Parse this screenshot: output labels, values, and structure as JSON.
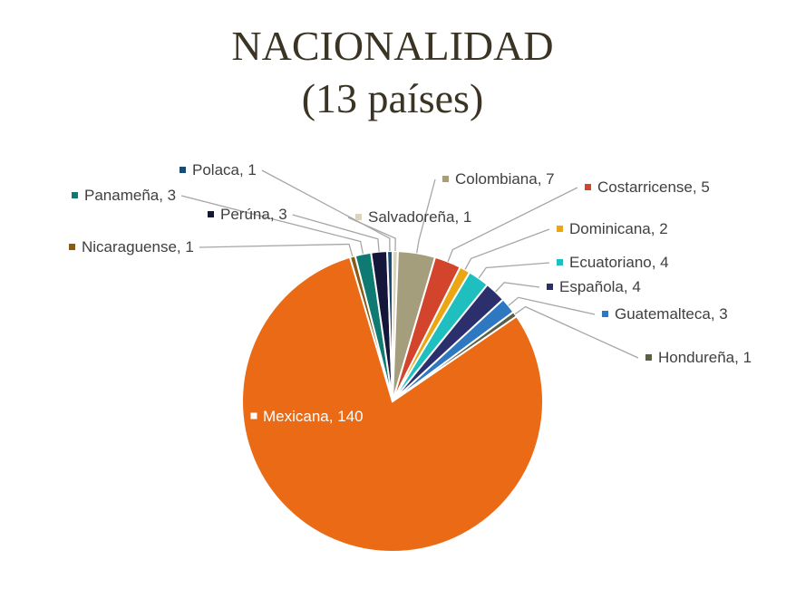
{
  "chart_data": {
    "type": "pie",
    "title_line1": "NACIONALIDAD",
    "title_line2": "(13 países)",
    "slices": [
      {
        "name": "Salvadoreña",
        "value": 1,
        "label": "Salvadoreña, 1",
        "color": "#d9d4bf"
      },
      {
        "name": "Colombiana",
        "value": 7,
        "label": "Colombiana, 7",
        "color": "#a59e7d"
      },
      {
        "name": "Costarricense",
        "value": 5,
        "label": "Costarricense, 5",
        "color": "#d2442b"
      },
      {
        "name": "Dominicana",
        "value": 2,
        "label": "Dominicana, 2",
        "color": "#eaa614"
      },
      {
        "name": "Ecuatoriano",
        "value": 4,
        "label": "Ecuatoriano, 4",
        "color": "#1fbfbf"
      },
      {
        "name": "Española",
        "value": 4,
        "label": "Española, 4",
        "color": "#2b2f6b"
      },
      {
        "name": "Guatemalteca",
        "value": 3,
        "label": "Guatemalteca, 3",
        "color": "#2e78c2"
      },
      {
        "name": "Hondureña",
        "value": 1,
        "label": "Hondureña, 1",
        "color": "#5b5f45"
      },
      {
        "name": "Mexicana",
        "value": 140,
        "label": "Mexicana, 140",
        "color": "#ea6a15"
      },
      {
        "name": "Nicaraguense",
        "value": 1,
        "label": "Nicaraguense, 1",
        "color": "#8a5a12"
      },
      {
        "name": "Panameña",
        "value": 3,
        "label": "Panameña, 3",
        "color": "#0f7a72"
      },
      {
        "name": "Perúna",
        "value": 3,
        "label": "Perúna, 3",
        "color": "#14163a"
      },
      {
        "name": "Polaca",
        "value": 1,
        "label": "Polaca, 1",
        "color": "#1a4b73"
      }
    ],
    "legend": "none"
  }
}
